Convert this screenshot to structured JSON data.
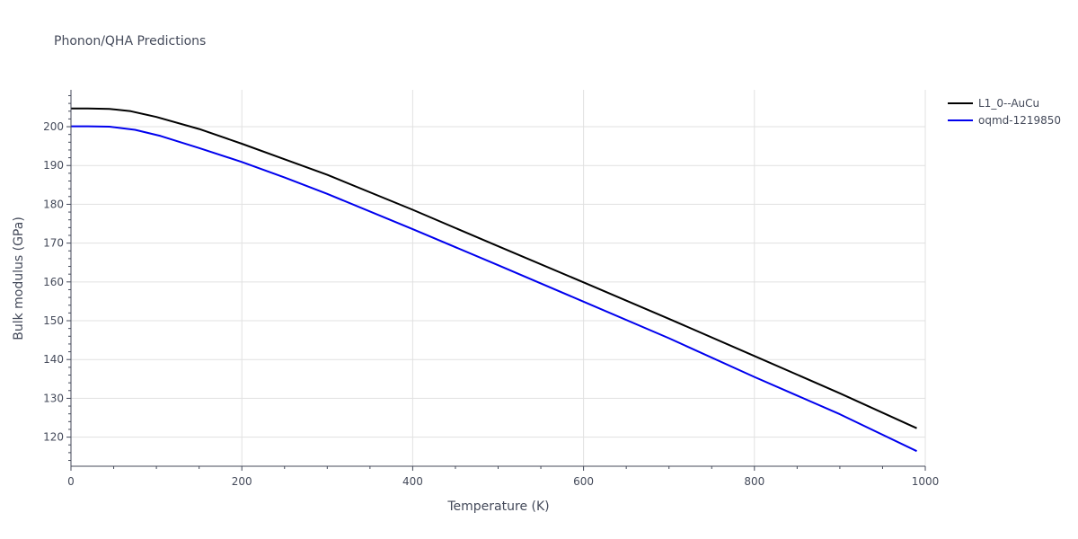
{
  "chart_data": {
    "type": "line",
    "title": "Phonon/QHA Predictions",
    "xlabel": "Temperature (K)",
    "ylabel": "Bulk modulus (GPa)",
    "xlim": [
      0,
      1000
    ],
    "ylim": [
      112.5,
      209.5
    ],
    "xticks": [
      0,
      200,
      400,
      600,
      800,
      1000
    ],
    "yticks": [
      120,
      130,
      140,
      150,
      160,
      170,
      180,
      190,
      200
    ],
    "grid": true,
    "legend_position": "top-right",
    "series": [
      {
        "name": "L1_0--AuCu",
        "color": "#000000",
        "x": [
          0,
          20,
          45,
          70,
          100,
          150,
          200,
          250,
          300,
          400,
          500,
          600,
          700,
          800,
          900,
          990
        ],
        "y": [
          204.7,
          204.7,
          204.6,
          204.0,
          202.5,
          199.4,
          195.6,
          191.6,
          187.6,
          178.6,
          169.2,
          159.9,
          150.5,
          140.9,
          131.3,
          122.3
        ]
      },
      {
        "name": "oqmd-1219850",
        "color": "#0000ee",
        "x": [
          0,
          20,
          45,
          75,
          105,
          150,
          200,
          250,
          300,
          400,
          500,
          600,
          700,
          800,
          900,
          990
        ],
        "y": [
          200.1,
          200.1,
          200.0,
          199.2,
          197.6,
          194.5,
          190.9,
          186.9,
          182.7,
          173.6,
          164.3,
          154.9,
          145.5,
          135.5,
          125.9,
          116.4
        ]
      }
    ]
  }
}
